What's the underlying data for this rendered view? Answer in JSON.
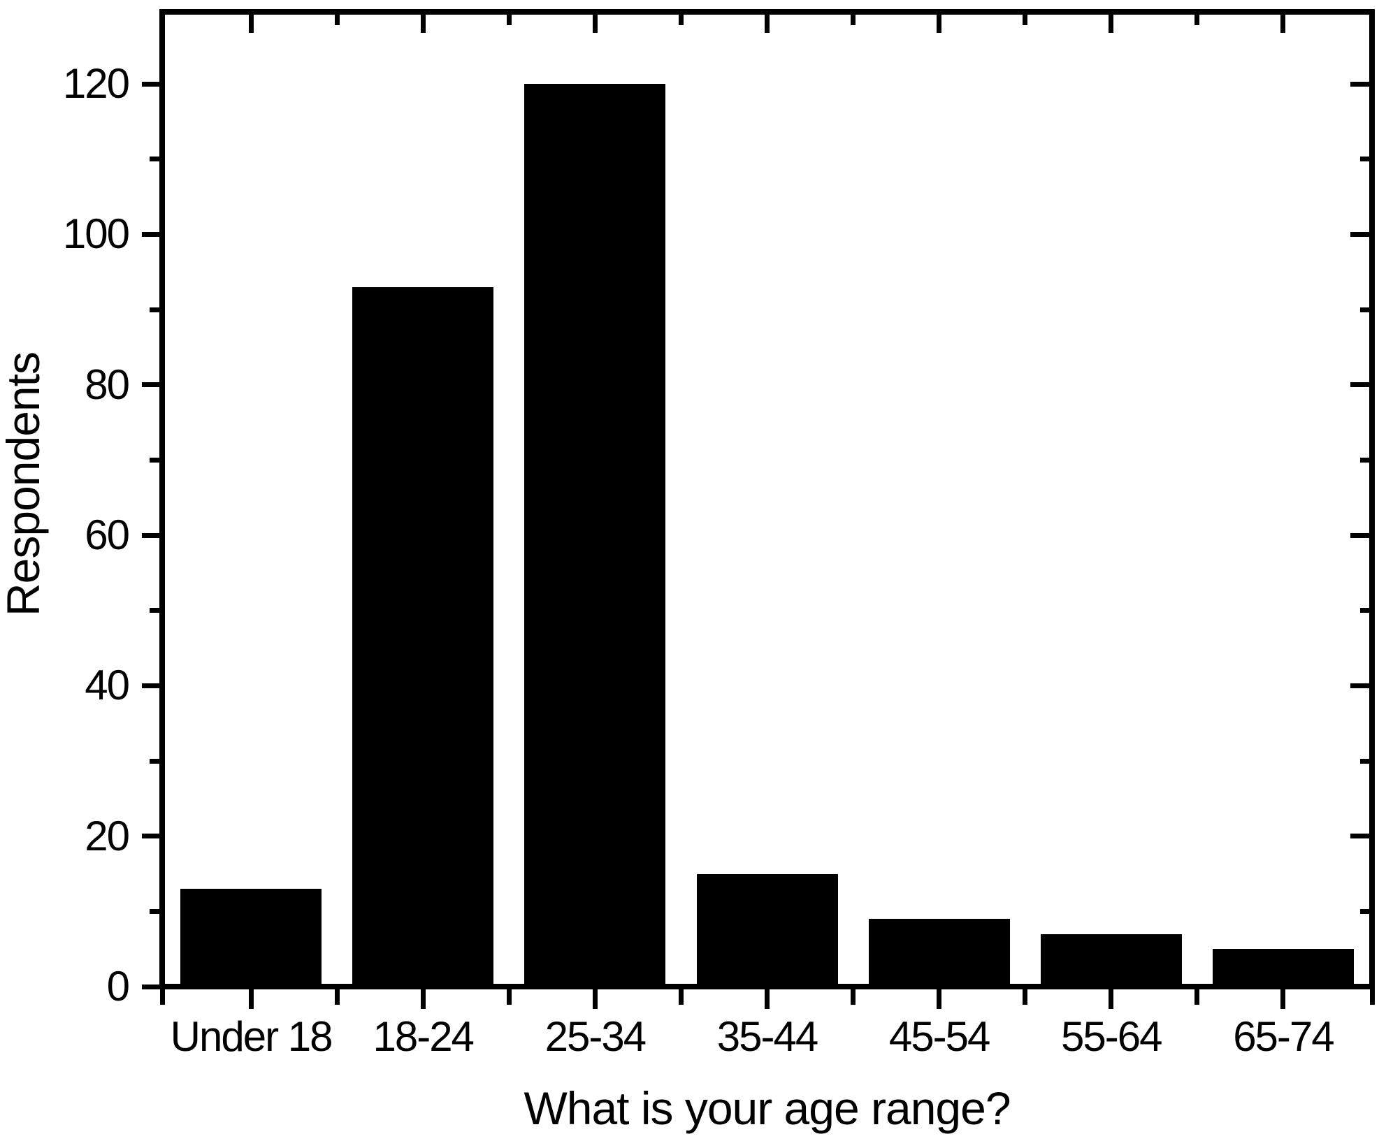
{
  "chart_data": {
    "type": "bar",
    "title": "",
    "xlabel": "What is your age range?",
    "ylabel": "Respondents",
    "categories": [
      "Under 18",
      "18-24",
      "25-34",
      "35-44",
      "45-54",
      "55-64",
      "65-74"
    ],
    "values": [
      13,
      93,
      120,
      15,
      9,
      7,
      5
    ],
    "ylim": [
      0,
      130
    ],
    "y_major_ticks": [
      0,
      20,
      40,
      60,
      80,
      100,
      120
    ],
    "y_minor_ticks": [
      10,
      30,
      50,
      70,
      90,
      110
    ],
    "bar_color": "#000000",
    "axis_color": "#000000",
    "background_color": "#ffffff",
    "grid": false,
    "legend_position": "none",
    "tick_style": "out-left-bottom, in-right-top, majors at category centers, minors at category boundaries"
  }
}
